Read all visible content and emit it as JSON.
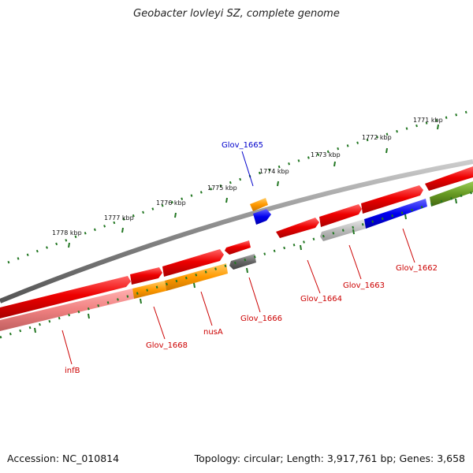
{
  "title": "Geobacter lovleyi SZ, complete genome",
  "footer": {
    "accession": "Accession: NC_010814",
    "summary": "Topology: circular; Length: 3,917,761 bp; Genes: 3,658"
  },
  "scale_labels": [
    "1771 kbp",
    "1772 kbp",
    "1773 kbp",
    "1774 kbp",
    "1775 kbp",
    "1776 kbp",
    "1777 kbp",
    "1778 kbp"
  ],
  "gene_labels": [
    {
      "text": "Glov_1665",
      "color": "#0000cc"
    },
    {
      "text": "Glov_1662",
      "color": "#cc0000"
    },
    {
      "text": "Glov_1663",
      "color": "#cc0000"
    },
    {
      "text": "Glov_1664",
      "color": "#cc0000"
    },
    {
      "text": "Glov_1666",
      "color": "#cc0000"
    },
    {
      "text": "nusA",
      "color": "#cc0000"
    },
    {
      "text": "Glov_1668",
      "color": "#cc0000"
    },
    {
      "text": "infB",
      "color": "#cc0000"
    }
  ],
  "colors": {
    "backbone": "#888888",
    "cds_forward": "#ee0000",
    "cds_reverse_light": "#f08080",
    "orange_feature": "#ff9900",
    "blue_feature": "#0000ee",
    "gray_feature": "#666666",
    "light_gray_feature": "#bbbbbb",
    "olive_feature": "#669922",
    "scale_ticks": "#227722"
  }
}
